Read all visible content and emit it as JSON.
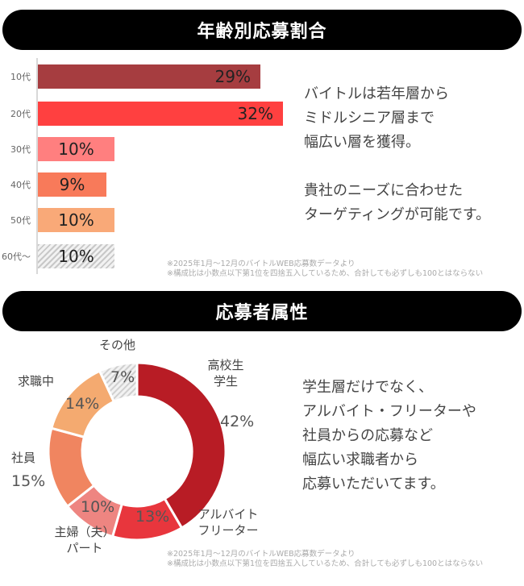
{
  "section1": {
    "title": "年齢別応募割合",
    "description_lines": [
      "バイトルは若年層から",
      "ミドルシニア層まで",
      "幅広い層を獲得。",
      "",
      "貴社のニーズに合わせた",
      "ターゲティングが可能です。"
    ],
    "notes": [
      "※2025年1月～12月のバイトルWEB応募数データより",
      "※構成比は小数点以下第1位を四捨五入しているため、合計しても必ずしも100とはならない"
    ]
  },
  "section2": {
    "title": "応募者属性",
    "description_lines": [
      "学生層だけでなく、",
      "アルバイト・フリーターや",
      "社員からの応募など",
      "幅広い求職者から",
      "応募いただいてます。"
    ],
    "notes": [
      "※2025年1月～12月のバイトルWEB応募数データより",
      "※構成比は小数点以下第1位を四捨五入しているため、合計しても必ずしも100とはならない"
    ]
  },
  "chart_data": [
    {
      "type": "bar",
      "title": "年齢別応募割合",
      "orientation": "horizontal",
      "categories": [
        "10代",
        "20代",
        "30代",
        "40代",
        "50代",
        "60代～"
      ],
      "values": [
        29,
        32,
        10,
        9,
        10,
        10
      ],
      "value_labels": [
        "29%",
        "32%",
        "10%",
        "9%",
        "10%",
        "10%"
      ],
      "colors": [
        "#a63d40",
        "#ff4040",
        "#ff7f7f",
        "#f87a5a",
        "#f9a978",
        "hatched-gray"
      ],
      "xlabel": "",
      "ylabel": "",
      "grid": false
    },
    {
      "type": "pie",
      "subtype": "donut",
      "title": "応募者属性",
      "categories": [
        "高校生・学生",
        "アルバイト・フリーター",
        "主婦（夫）パート",
        "社員",
        "求職中",
        "その他"
      ],
      "labels_display": [
        [
          "高校生",
          "学生"
        ],
        [
          "アルバイト",
          "フリーター"
        ],
        [
          "主婦（夫）",
          "パート"
        ],
        [
          "社員"
        ],
        [
          "求職中"
        ],
        [
          "その他"
        ]
      ],
      "values": [
        42,
        13,
        10,
        15,
        14,
        7
      ],
      "value_labels": [
        "42%",
        "13%",
        "10%",
        "15%",
        "14%",
        "7%"
      ],
      "colors": [
        "#b81c25",
        "#e8363d",
        "#ee8581",
        "#f08560",
        "#f4aa70",
        "hatched-gray"
      ]
    }
  ]
}
